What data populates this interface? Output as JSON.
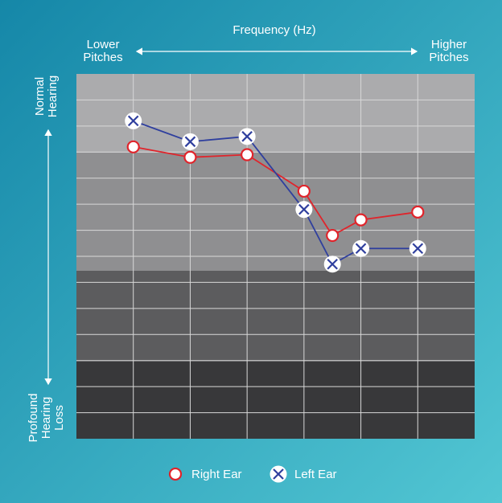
{
  "chart_data": {
    "type": "audiogram",
    "title": "Frequency (Hz)",
    "x_left_label": [
      "Lower",
      "Pitches"
    ],
    "x_right_label": [
      "Higher",
      "Pitches"
    ],
    "y_top_label": [
      "Normal",
      "Hearing"
    ],
    "y_bottom_label": [
      "Profound",
      "Hearing",
      "Loss"
    ],
    "x": [
      1,
      2,
      3,
      4,
      4.5,
      5,
      6
    ],
    "xlim": [
      0,
      7
    ],
    "xticks": [
      1,
      2,
      3,
      4,
      5,
      6
    ],
    "ylim": [
      -10,
      130
    ],
    "yticks": [
      0,
      10,
      20,
      30,
      40,
      50,
      60,
      70,
      80,
      90,
      100,
      110,
      120
    ],
    "y_inverted": true,
    "grid": true,
    "series": [
      {
        "name": "Right Ear",
        "color": "#e0242b",
        "marker": "circle",
        "values": [
          18,
          22,
          21,
          35,
          52,
          46,
          43
        ]
      },
      {
        "name": "Left Ear",
        "color": "#2f3f9e",
        "marker": "x",
        "values": [
          8,
          16,
          14,
          42,
          63,
          57,
          57
        ]
      }
    ]
  }
}
